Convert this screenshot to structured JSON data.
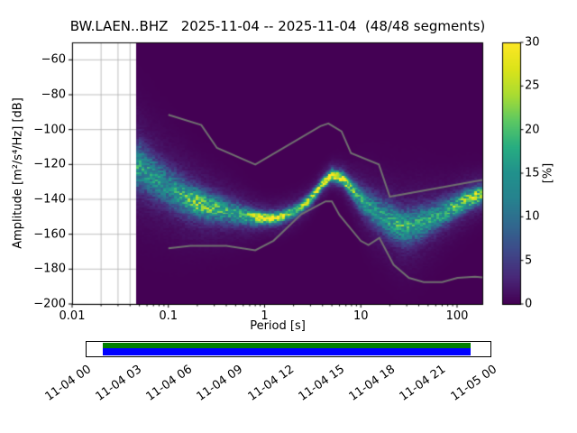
{
  "chart_data": {
    "type": "heatmap",
    "title": "BW.LAEN..BHZ   2025-11-04 -- 2025-11-04  (48/48 segments)",
    "xlabel": "Period [s]",
    "ylabel": "Amplitude [m²/s⁴/Hz] [dB]",
    "x_scale": "log",
    "xlim": [
      0.01,
      183
    ],
    "ylim": [
      -200,
      -50
    ],
    "x_ticks": [
      0.01,
      0.1,
      1,
      10,
      100
    ],
    "x_tick_labels": [
      "0.01",
      "0.1",
      "1",
      "10",
      "100"
    ],
    "y_ticks": [
      -60,
      -80,
      -100,
      -120,
      -140,
      -160,
      -180,
      -200
    ],
    "y_tick_labels": [
      "−60",
      "−80",
      "−100",
      "−120",
      "−140",
      "−160",
      "−180",
      "−200"
    ],
    "grid": true,
    "background_color": "#440154",
    "colormap": "viridis",
    "data_period_min": 0.046,
    "colorbar": {
      "label": "[%]",
      "min": 0,
      "max": 30,
      "ticks": [
        0,
        5,
        10,
        15,
        20,
        25,
        30
      ],
      "tick_labels": [
        "0",
        "5",
        "10",
        "15",
        "20",
        "25",
        "30"
      ]
    },
    "psd_distribution": {
      "comment": "mode ridge of the probabilistic PSD histogram, read off the plot",
      "periods": [
        0.05,
        0.07,
        0.1,
        0.15,
        0.22,
        0.35,
        0.5,
        0.7,
        1.0,
        1.5,
        2.2,
        3.0,
        4.0,
        5.0,
        6.5,
        8.0,
        10,
        14,
        20,
        28,
        40,
        60,
        90,
        130,
        180
      ],
      "mode_db": [
        -121,
        -127,
        -133,
        -139,
        -143,
        -146,
        -148,
        -150,
        -151,
        -150,
        -146,
        -140,
        -131,
        -126,
        -128,
        -134,
        -140,
        -147,
        -152,
        -156,
        -154,
        -150,
        -145,
        -140,
        -137
      ],
      "spread_db": [
        8,
        7.5,
        7,
        6,
        5,
        4.5,
        4,
        3,
        2.2,
        2.2,
        2.2,
        2,
        1.8,
        1.8,
        2.2,
        3,
        4.5,
        5.5,
        6,
        6,
        6,
        5,
        4,
        3.5,
        3
      ],
      "peak_percent": [
        14,
        13,
        12,
        16,
        20,
        16,
        14,
        18,
        26,
        22,
        18,
        22,
        28,
        30,
        26,
        18,
        14,
        13,
        14,
        16,
        14,
        14,
        17,
        20,
        22
      ]
    },
    "noise_models": {
      "line_color": "#707070",
      "high": {
        "periods": [
          0.1,
          0.22,
          0.32,
          0.8,
          3.8,
          4.6,
          6.3,
          7.9,
          15.4,
          20,
          354.8
        ],
        "db": [
          -91.5,
          -97.4,
          -110.5,
          -120,
          -98,
          -96.5,
          -101,
          -113.5,
          -120,
          -138.5,
          -126
        ]
      },
      "low": {
        "periods": [
          0.1,
          0.17,
          0.4,
          0.8,
          1.24,
          2.4,
          4.3,
          5,
          6,
          10,
          12,
          15.6,
          21.9,
          31.6,
          45,
          70,
          101,
          154,
          328
        ],
        "db": [
          -168,
          -166.7,
          -166.7,
          -169.2,
          -163.7,
          -148.6,
          -141.1,
          -141.1,
          -149,
          -163.8,
          -166.2,
          -162.1,
          -177.5,
          -185,
          -187.5,
          -187.5,
          -185,
          -184.4,
          -186
        ]
      }
    },
    "coverage": {
      "labels": [
        "11-04 00",
        "11-04 03",
        "11-04 06",
        "11-04 09",
        "11-04 12",
        "11-04 15",
        "11-04 18",
        "11-04 21",
        "11-05 00"
      ],
      "data_color_top": "#007f00",
      "data_color_bottom": "#0000ff",
      "data_start_frac": 0.04,
      "data_end_frac": 0.951
    }
  }
}
